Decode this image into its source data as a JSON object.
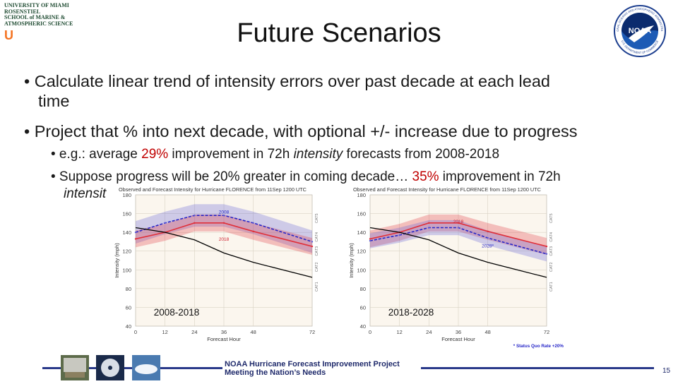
{
  "logo": {
    "lines": [
      "UNIVERSITY OF MIAMI",
      "ROSENSTIEL",
      "SCHOOL of MARINE &",
      "ATMOSPHERIC SCIENCE"
    ],
    "mark": "U"
  },
  "noaa_logo": {
    "text": "NOAA",
    "ring_top": "NATIONAL OCEANIC AND ATMOSPHERIC ADMINISTRATION",
    "ring_bottom": "U.S. DEPARTMENT OF COMMERCE"
  },
  "title": "Future Scenarios",
  "bullets": [
    {
      "line1": "• Calculate linear trend of intensity errors over past decade at each lead",
      "line2": "time"
    },
    {
      "line1": "• Project that % into next decade, with optional +/- increase due to progress"
    }
  ],
  "subbullets": [
    {
      "prefix": "• e.g.: average ",
      "highlight": "29%",
      "mid": " improvement in 72h ",
      "italic": "intensity",
      "suffix": " forecasts from 2008-2018"
    },
    {
      "prefix": "• Suppose progress will be 20% greater in coming decade… ",
      "highlight": "35%",
      "suffix": " improvement in 72h",
      "line2": "intensit"
    }
  ],
  "charts": [
    {
      "heading": "Observed and Forecast Intensity for Hurricane FLORENCE from 11Sep 1200 UTC",
      "caption": "2008-2018",
      "ylabel": "Intensity (mph)",
      "xlabel": "Forecast Hour",
      "series_labels": [
        "2008",
        "2018"
      ],
      "side_labels": [
        "CAT5",
        "CAT4",
        "CAT3",
        "CAT2",
        "CAT1"
      ]
    },
    {
      "heading": "Observed and Forecast Intensity for Hurricane FLORENCE from 11Sep 1200 UTC",
      "caption": "2018-2028",
      "ylabel": "Intensity (mph)",
      "xlabel": "Forecast Hour",
      "series_labels": [
        "2018",
        "2028*"
      ],
      "side_labels": [
        "CAT5",
        "CAT4",
        "CAT3",
        "CAT2",
        "CAT1"
      ],
      "note": "* Status Quo Rate +20%"
    }
  ],
  "chart_data": [
    {
      "type": "line",
      "x": [
        0,
        12,
        24,
        36,
        48,
        72
      ],
      "xticks": [
        "0",
        "12",
        "24",
        "36",
        "48",
        "72"
      ],
      "yticks": [
        "40",
        "60",
        "80",
        "100",
        "120",
        "140",
        "160",
        "180"
      ],
      "ylim": [
        40,
        180
      ],
      "xlim": [
        0,
        72
      ],
      "series": [
        {
          "name": "2008",
          "values": [
            140,
            150,
            158,
            158,
            150,
            130
          ],
          "band": 12,
          "color": "#5b5bd6"
        },
        {
          "name": "2018",
          "values": [
            133,
            140,
            150,
            150,
            141,
            125
          ],
          "band": 9,
          "color": "#e0303a"
        },
        {
          "values": [
            145,
            140,
            132,
            118,
            108,
            92
          ],
          "color": "#000000"
        }
      ]
    },
    {
      "type": "line",
      "x": [
        0,
        12,
        24,
        36,
        48,
        72
      ],
      "xticks": [
        "0",
        "12",
        "24",
        "36",
        "48",
        "72"
      ],
      "yticks": [
        "40",
        "60",
        "80",
        "100",
        "120",
        "140",
        "160",
        "180"
      ],
      "ylim": [
        40,
        180
      ],
      "xlim": [
        0,
        72
      ],
      "series": [
        {
          "name": "2018",
          "values": [
            133,
            140,
            150,
            150,
            141,
            125
          ],
          "band": 9,
          "color": "#e0303a"
        },
        {
          "name": "2028*",
          "values": [
            131,
            137,
            145,
            145,
            134,
            117
          ],
          "band": 8,
          "color": "#5b5bd6"
        },
        {
          "values": [
            145,
            140,
            132,
            118,
            108,
            92
          ],
          "color": "#000000"
        }
      ]
    }
  ],
  "footer": {
    "line1": "NOAA Hurricane Forecast Improvement Project",
    "line2": "Meeting the Nation’s Needs",
    "page": "15",
    "bar_color": "#2a3a8a"
  }
}
